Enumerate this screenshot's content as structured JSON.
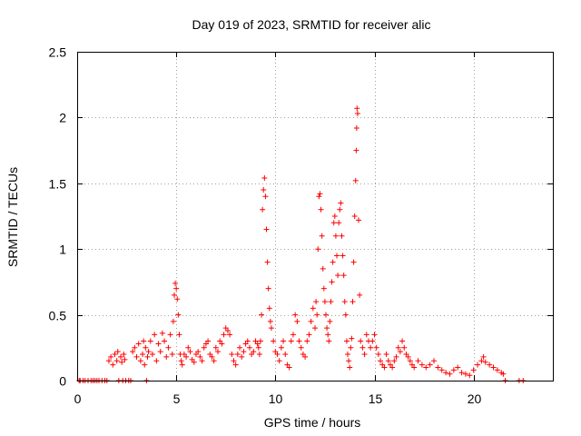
{
  "chart_data": {
    "type": "scatter",
    "title": "Day 019 of 2023, SRMTID for receiver alic",
    "xlabel": "GPS time / hours",
    "ylabel": "SRMTID / TECUs",
    "xlim": [
      0,
      24
    ],
    "ylim": [
      0,
      2.5
    ],
    "xticks": [
      0,
      5,
      10,
      15,
      20
    ],
    "xtick_labels": [
      "0",
      "5",
      "10",
      "15",
      "20"
    ],
    "yticks": [
      0,
      0.5,
      1,
      1.5,
      2,
      2.5
    ],
    "ytick_labels": [
      "0",
      "0.5",
      "1",
      "1.5",
      "2",
      "2.5"
    ],
    "grid": true,
    "marker": "+",
    "series": [
      {
        "name": "SRMTID",
        "color": "#ff0000",
        "x": [
          0.1,
          0.15,
          0.3,
          0.4,
          0.55,
          0.7,
          0.8,
          0.9,
          1.0,
          1.1,
          1.25,
          1.4,
          1.5,
          1.6,
          1.7,
          1.8,
          1.9,
          2.0,
          2.05,
          2.1,
          2.2,
          2.25,
          2.3,
          2.35,
          2.4,
          2.45,
          2.6,
          2.7,
          2.8,
          2.9,
          3.0,
          3.1,
          3.2,
          3.3,
          3.35,
          3.4,
          3.45,
          3.5,
          3.55,
          3.6,
          3.7,
          3.8,
          3.9,
          4.0,
          4.1,
          4.2,
          4.3,
          4.4,
          4.5,
          4.6,
          4.7,
          4.8,
          4.85,
          4.9,
          4.95,
          5.0,
          5.05,
          5.1,
          5.15,
          5.2,
          5.25,
          5.3,
          5.4,
          5.5,
          5.6,
          5.7,
          5.8,
          5.9,
          6.0,
          6.1,
          6.2,
          6.3,
          6.4,
          6.5,
          6.6,
          6.7,
          6.8,
          6.9,
          7.0,
          7.1,
          7.2,
          7.3,
          7.4,
          7.5,
          7.6,
          7.7,
          7.8,
          7.9,
          8.0,
          8.1,
          8.2,
          8.3,
          8.4,
          8.5,
          8.6,
          8.7,
          8.8,
          8.9,
          9.0,
          9.1,
          9.15,
          9.2,
          9.25,
          9.3,
          9.35,
          9.4,
          9.45,
          9.5,
          9.55,
          9.6,
          9.65,
          9.7,
          9.75,
          9.8,
          9.9,
          10.0,
          10.1,
          10.2,
          10.3,
          10.4,
          10.5,
          10.6,
          10.7,
          10.8,
          10.9,
          11.0,
          11.1,
          11.2,
          11.3,
          11.4,
          11.5,
          11.6,
          11.7,
          11.8,
          11.9,
          12.0,
          12.05,
          12.1,
          12.15,
          12.2,
          12.25,
          12.3,
          12.35,
          12.4,
          12.45,
          12.5,
          12.55,
          12.6,
          12.65,
          12.7,
          12.75,
          12.8,
          12.85,
          12.9,
          12.95,
          13.0,
          13.05,
          13.1,
          13.15,
          13.2,
          13.25,
          13.3,
          13.35,
          13.4,
          13.45,
          13.5,
          13.55,
          13.6,
          13.65,
          13.7,
          13.75,
          13.8,
          13.85,
          13.9,
          13.95,
          14.0,
          14.05,
          14.08,
          14.1,
          14.12,
          14.15,
          14.2,
          14.25,
          14.3,
          14.4,
          14.5,
          14.6,
          14.7,
          14.8,
          14.9,
          15.0,
          15.1,
          15.2,
          15.3,
          15.4,
          15.5,
          15.6,
          15.7,
          15.8,
          15.9,
          16.0,
          16.1,
          16.2,
          16.3,
          16.4,
          16.5,
          16.6,
          16.7,
          16.8,
          16.9,
          17.0,
          17.2,
          17.4,
          17.6,
          17.8,
          18.0,
          18.2,
          18.4,
          18.6,
          18.8,
          19.0,
          19.2,
          19.4,
          19.6,
          19.8,
          20.0,
          20.2,
          20.4,
          20.5,
          20.6,
          20.8,
          21.0,
          21.2,
          21.4,
          21.5,
          21.6,
          22.3,
          22.5
        ],
        "y": [
          0.0,
          0.0,
          0.0,
          0.0,
          0.0,
          0.0,
          0.0,
          0.0,
          0.0,
          0.0,
          0.0,
          0.0,
          0.0,
          0.15,
          0.18,
          0.12,
          0.2,
          0.15,
          0.22,
          0.0,
          0.18,
          0.14,
          0.0,
          0.2,
          0.16,
          0.0,
          0.0,
          0.0,
          0.22,
          0.25,
          0.18,
          0.28,
          0.15,
          0.2,
          0.3,
          0.12,
          0.25,
          0.0,
          0.18,
          0.22,
          0.3,
          0.2,
          0.35,
          0.15,
          0.28,
          0.22,
          0.36,
          0.3,
          0.18,
          0.25,
          0.35,
          0.2,
          0.45,
          0.65,
          0.74,
          0.7,
          0.62,
          0.5,
          0.35,
          0.2,
          0.15,
          0.12,
          0.2,
          0.18,
          0.25,
          0.22,
          0.16,
          0.14,
          0.2,
          0.22,
          0.18,
          0.15,
          0.25,
          0.28,
          0.3,
          0.2,
          0.18,
          0.15,
          0.25,
          0.22,
          0.3,
          0.28,
          0.35,
          0.4,
          0.38,
          0.35,
          0.2,
          0.15,
          0.12,
          0.2,
          0.25,
          0.18,
          0.22,
          0.28,
          0.3,
          0.25,
          0.2,
          0.22,
          0.3,
          0.28,
          0.25,
          0.2,
          0.3,
          0.5,
          1.3,
          1.45,
          1.54,
          1.4,
          1.15,
          0.9,
          0.7,
          0.55,
          0.45,
          0.4,
          0.3,
          0.22,
          0.2,
          0.15,
          0.25,
          0.3,
          0.2,
          0.12,
          0.1,
          0.3,
          0.35,
          0.5,
          0.45,
          0.3,
          0.25,
          0.2,
          0.18,
          0.3,
          0.35,
          0.45,
          0.55,
          0.4,
          0.6,
          0.5,
          1.0,
          1.4,
          1.42,
          1.3,
          1.1,
          0.85,
          0.7,
          0.6,
          0.5,
          0.4,
          0.35,
          0.3,
          0.45,
          0.6,
          0.75,
          0.9,
          1.2,
          1.25,
          1.1,
          0.95,
          0.8,
          1.2,
          1.3,
          1.35,
          1.1,
          0.95,
          0.8,
          0.6,
          0.5,
          0.3,
          0.2,
          0.15,
          0.1,
          0.25,
          0.32,
          0.6,
          0.9,
          1.25,
          1.52,
          1.75,
          1.92,
          2.07,
          2.03,
          1.22,
          0.65,
          0.3,
          0.25,
          0.2,
          0.35,
          0.3,
          0.25,
          0.3,
          0.35,
          0.25,
          0.2,
          0.15,
          0.12,
          0.1,
          0.2,
          0.15,
          0.12,
          0.1,
          0.15,
          0.18,
          0.25,
          0.22,
          0.3,
          0.25,
          0.2,
          0.18,
          0.15,
          0.12,
          0.1,
          0.15,
          0.12,
          0.1,
          0.12,
          0.15,
          0.1,
          0.08,
          0.06,
          0.05,
          0.08,
          0.1,
          0.06,
          0.05,
          0.04,
          0.08,
          0.12,
          0.15,
          0.18,
          0.14,
          0.12,
          0.1,
          0.08,
          0.06,
          0.05,
          0.0,
          0.0,
          0.0
        ]
      }
    ]
  }
}
